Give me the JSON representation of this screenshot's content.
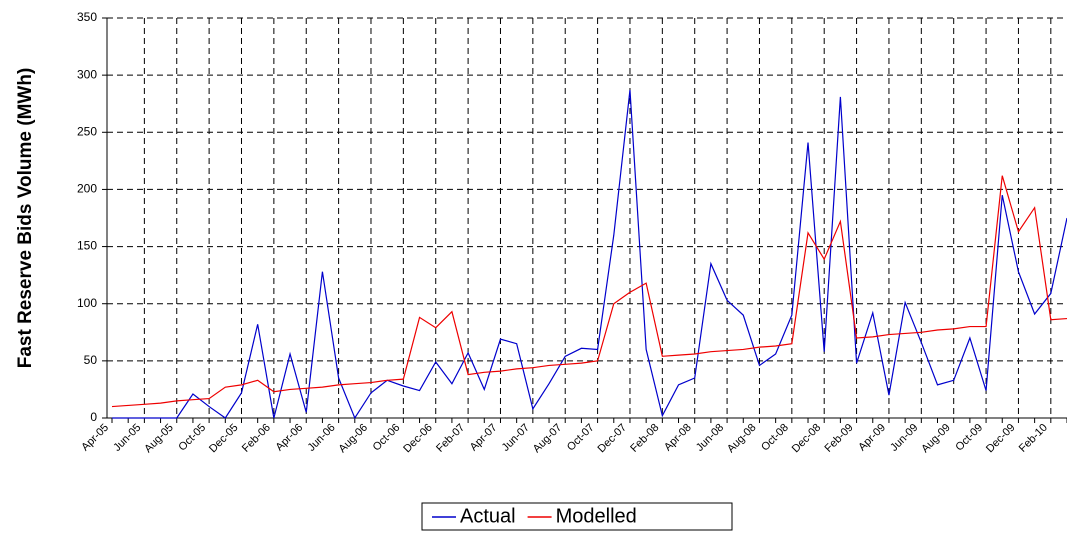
{
  "chart_data": {
    "type": "line",
    "y_label": "Fast Reserve Bids Volume (MWh)",
    "categories": [
      "Apr-05",
      null,
      "Jun-05",
      null,
      "Aug-05",
      null,
      "Oct-05",
      null,
      "Dec-05",
      null,
      "Feb-06",
      null,
      "Apr-06",
      null,
      "Jun-06",
      null,
      "Aug-06",
      null,
      "Oct-06",
      null,
      "Dec-06",
      null,
      "Feb-07",
      null,
      "Apr-07",
      null,
      "Jun-07",
      null,
      "Aug-07",
      null,
      "Oct-07",
      null,
      "Dec-07",
      null,
      "Feb-08",
      null,
      "Apr-08",
      null,
      "Jun-08",
      null,
      "Aug-08",
      null,
      "Oct-08",
      null,
      "Dec-08",
      null,
      "Feb-09",
      null,
      "Apr-09",
      null,
      "Jun-09",
      null,
      "Aug-09",
      null,
      "Oct-09",
      null,
      "Dec-09",
      null,
      "Feb-10",
      null
    ],
    "series": [
      {
        "name": "Actual",
        "color": "#0000cc",
        "values": [
          0,
          0,
          0,
          0,
          0,
          21,
          10,
          0,
          22,
          82,
          0,
          56,
          5,
          128,
          35,
          0,
          22,
          33,
          28,
          24,
          49,
          30,
          57,
          25,
          69,
          65,
          8,
          30,
          54,
          61,
          60,
          160,
          287,
          60,
          2,
          29,
          35,
          135,
          103,
          90,
          46,
          56,
          90,
          241,
          58,
          281,
          48,
          92,
          20,
          101,
          66,
          29,
          33,
          70,
          24,
          195,
          128,
          91,
          109,
          175
        ]
      },
      {
        "name": "Modelled",
        "color": "#ee0000",
        "values": [
          10,
          11,
          12,
          13,
          15,
          16,
          17,
          27,
          29,
          33,
          23,
          25,
          26,
          27,
          29,
          30,
          31,
          33,
          34,
          88,
          79,
          93,
          38,
          40,
          41,
          43,
          44,
          46,
          47,
          48,
          50,
          100,
          110,
          118,
          54,
          55,
          56,
          58,
          59,
          60,
          62,
          63,
          65,
          162,
          139,
          172,
          70,
          71,
          73,
          74,
          75,
          77,
          78,
          80,
          80,
          212,
          163,
          184,
          86,
          87
        ]
      }
    ],
    "ylim": [
      0,
      350
    ],
    "yticks": [
      0,
      50,
      100,
      150,
      200,
      250,
      300,
      350
    ],
    "grid": true,
    "legend": "bottom"
  }
}
